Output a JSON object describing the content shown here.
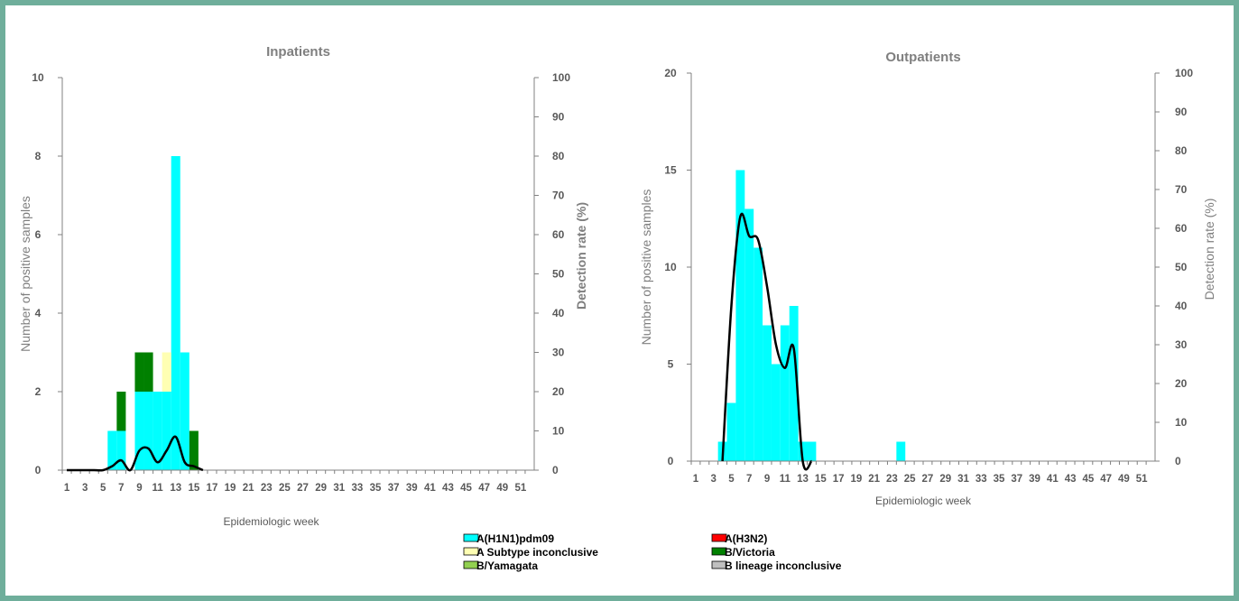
{
  "colors": {
    "A(H1N1)pdm09": "#00ffff",
    "A(H3N2)": "#ff0000",
    "A Subtype inconclusive": "#ffffb3",
    "B/Victoria": "#008000",
    "B/Yamagata": "#92d050",
    "B lineage inconclusive": "#bfbfbf",
    "detection_line": "#000000",
    "frame_border": "#6fae9b"
  },
  "legend": {
    "items": [
      {
        "label": "A(H1N1)pdm09",
        "color": "#00ffff"
      },
      {
        "label": "A(H3N2)",
        "color": "#ff0000"
      },
      {
        "label": "A Subtype inconclusive",
        "color": "#ffffb3"
      },
      {
        "label": "B/Victoria",
        "color": "#008000"
      },
      {
        "label": "B/Yamagata",
        "color": "#92d050"
      },
      {
        "label": "B lineage inconclusive",
        "color": "#bfbfbf"
      }
    ]
  },
  "chart_data": [
    {
      "type": "bar",
      "stacked": true,
      "title": "Inpatients",
      "xlabel": "Epidemiologic week",
      "ylabel": "Number of positive samples",
      "y2label": "Detection rate (%)",
      "ylim": [
        0,
        10
      ],
      "y2lim": [
        0,
        100
      ],
      "yticks": [
        0,
        2,
        4,
        6,
        8,
        10
      ],
      "y2ticks": [
        0,
        10,
        20,
        30,
        40,
        50,
        60,
        70,
        80,
        90,
        100
      ],
      "xticks": [
        "1",
        "3",
        "5",
        "7",
        "9",
        "11",
        "13",
        "15",
        "17",
        "19",
        "21",
        "23",
        "25",
        "27",
        "29",
        "31",
        "33",
        "35",
        "37",
        "39",
        "41",
        "43",
        "45",
        "47",
        "49",
        "51"
      ],
      "x": [
        1,
        2,
        3,
        4,
        5,
        6,
        7,
        8,
        9,
        10,
        11,
        12,
        13,
        14,
        15,
        16,
        17,
        18,
        19,
        20,
        21,
        22,
        23,
        24,
        25,
        26,
        27,
        28,
        29,
        30,
        31,
        32,
        33,
        34,
        35,
        36,
        37,
        38,
        39,
        40,
        41,
        42,
        43,
        44,
        45,
        46,
        47,
        48,
        49,
        50,
        51,
        52
      ],
      "series": [
        {
          "name": "A(H1N1)pdm09",
          "values": [
            0,
            0,
            0,
            0,
            0,
            1,
            1,
            0,
            2,
            2,
            2,
            2,
            8,
            3,
            0,
            0,
            0,
            0,
            0,
            0,
            0,
            0,
            0,
            0,
            0,
            0,
            0,
            0,
            0,
            0,
            0,
            0,
            0,
            0,
            0,
            0,
            0,
            0,
            0,
            0,
            0,
            0,
            0,
            0,
            0,
            0,
            0,
            0,
            0,
            0,
            0,
            0
          ]
        },
        {
          "name": "A(H3N2)",
          "values": [
            0,
            0,
            0,
            0,
            0,
            0,
            0,
            0,
            0,
            0,
            0,
            0,
            0,
            0,
            0,
            0,
            0,
            0,
            0,
            0,
            0,
            0,
            0,
            0,
            0,
            0,
            0,
            0,
            0,
            0,
            0,
            0,
            0,
            0,
            0,
            0,
            0,
            0,
            0,
            0,
            0,
            0,
            0,
            0,
            0,
            0,
            0,
            0,
            0,
            0,
            0,
            0
          ]
        },
        {
          "name": "A Subtype inconclusive",
          "values": [
            0,
            0,
            0,
            0,
            0,
            0,
            0,
            0,
            0,
            0,
            0,
            1,
            0,
            0,
            0,
            0,
            0,
            0,
            0,
            0,
            0,
            0,
            0,
            0,
            0,
            0,
            0,
            0,
            0,
            0,
            0,
            0,
            0,
            0,
            0,
            0,
            0,
            0,
            0,
            0,
            0,
            0,
            0,
            0,
            0,
            0,
            0,
            0,
            0,
            0,
            0,
            0
          ]
        },
        {
          "name": "B/Victoria",
          "values": [
            0,
            0,
            0,
            0,
            0,
            0,
            1,
            0,
            1,
            1,
            0,
            0,
            0,
            0,
            1,
            0,
            0,
            0,
            0,
            0,
            0,
            0,
            0,
            0,
            0,
            0,
            0,
            0,
            0,
            0,
            0,
            0,
            0,
            0,
            0,
            0,
            0,
            0,
            0,
            0,
            0,
            0,
            0,
            0,
            0,
            0,
            0,
            0,
            0,
            0,
            0,
            0
          ]
        },
        {
          "name": "B/Yamagata",
          "values": [
            0,
            0,
            0,
            0,
            0,
            0,
            0,
            0,
            0,
            0,
            0,
            0,
            0,
            0,
            0,
            0,
            0,
            0,
            0,
            0,
            0,
            0,
            0,
            0,
            0,
            0,
            0,
            0,
            0,
            0,
            0,
            0,
            0,
            0,
            0,
            0,
            0,
            0,
            0,
            0,
            0,
            0,
            0,
            0,
            0,
            0,
            0,
            0,
            0,
            0,
            0,
            0
          ]
        },
        {
          "name": "B lineage inconclusive",
          "values": [
            0,
            0,
            0,
            0,
            0,
            0,
            0,
            0,
            0,
            0,
            0,
            0,
            0,
            0,
            0,
            0,
            0,
            0,
            0,
            0,
            0,
            0,
            0,
            0,
            0,
            0,
            0,
            0,
            0,
            0,
            0,
            0,
            0,
            0,
            0,
            0,
            0,
            0,
            0,
            0,
            0,
            0,
            0,
            0,
            0,
            0,
            0,
            0,
            0,
            0,
            0,
            0
          ]
        }
      ],
      "detection_rate": {
        "x": [
          1,
          2,
          3,
          4,
          5,
          6,
          7,
          8,
          9,
          10,
          11,
          12,
          13,
          14,
          15,
          16
        ],
        "values": [
          0,
          0,
          0,
          0,
          0,
          1,
          2.5,
          0,
          5,
          5.5,
          2,
          5,
          8.5,
          2,
          1,
          0
        ]
      }
    },
    {
      "type": "bar",
      "stacked": true,
      "title": "Outpatients",
      "xlabel": "Epidemiologic week",
      "ylabel": "Number of positive samples",
      "y2label": "Detection rate (%)",
      "ylim": [
        0,
        20
      ],
      "y2lim": [
        0,
        100
      ],
      "yticks": [
        0,
        5,
        10,
        15,
        20
      ],
      "y2ticks": [
        0,
        10,
        20,
        30,
        40,
        50,
        60,
        70,
        80,
        90,
        100
      ],
      "xticks": [
        "1",
        "3",
        "5",
        "7",
        "9",
        "11",
        "13",
        "15",
        "17",
        "19",
        "21",
        "23",
        "25",
        "27",
        "29",
        "31",
        "33",
        "35",
        "37",
        "39",
        "41",
        "43",
        "45",
        "47",
        "49",
        "51"
      ],
      "x": [
        1,
        2,
        3,
        4,
        5,
        6,
        7,
        8,
        9,
        10,
        11,
        12,
        13,
        14,
        15,
        16,
        17,
        18,
        19,
        20,
        21,
        22,
        23,
        24,
        25,
        26,
        27,
        28,
        29,
        30,
        31,
        32,
        33,
        34,
        35,
        36,
        37,
        38,
        39,
        40,
        41,
        42,
        43,
        44,
        45,
        46,
        47,
        48,
        49,
        50,
        51,
        52
      ],
      "series": [
        {
          "name": "A(H1N1)pdm09",
          "values": [
            0,
            0,
            0,
            1,
            3,
            15,
            13,
            11,
            7,
            5,
            7,
            8,
            1,
            1,
            0,
            0,
            0,
            0,
            0,
            0,
            0,
            0,
            0,
            1,
            0,
            0,
            0,
            0,
            0,
            0,
            0,
            0,
            0,
            0,
            0,
            0,
            0,
            0,
            0,
            0,
            0,
            0,
            0,
            0,
            0,
            0,
            0,
            0,
            0,
            0,
            0,
            0
          ]
        },
        {
          "name": "A(H3N2)",
          "values": [
            0,
            0,
            0,
            0,
            0,
            0,
            0,
            0,
            0,
            0,
            0,
            0,
            0,
            0,
            0,
            0,
            0,
            0,
            0,
            0,
            0,
            0,
            0,
            0,
            0,
            0,
            0,
            0,
            0,
            0,
            0,
            0,
            0,
            0,
            0,
            0,
            0,
            0,
            0,
            0,
            0,
            0,
            0,
            0,
            0,
            0,
            0,
            0,
            0,
            0,
            0,
            0
          ]
        },
        {
          "name": "A Subtype inconclusive",
          "values": [
            0,
            0,
            0,
            0,
            0,
            0,
            0,
            0,
            0,
            0,
            0,
            0,
            0,
            0,
            0,
            0,
            0,
            0,
            0,
            0,
            0,
            0,
            0,
            0,
            0,
            0,
            0,
            0,
            0,
            0,
            0,
            0,
            0,
            0,
            0,
            0,
            0,
            0,
            0,
            0,
            0,
            0,
            0,
            0,
            0,
            0,
            0,
            0,
            0,
            0,
            0,
            0
          ]
        },
        {
          "name": "B/Victoria",
          "values": [
            0,
            0,
            0,
            0,
            0,
            0,
            0,
            0,
            0,
            0,
            0,
            0,
            0,
            0,
            0,
            0,
            0,
            0,
            0,
            0,
            0,
            0,
            0,
            0,
            0,
            0,
            0,
            0,
            0,
            0,
            0,
            0,
            0,
            0,
            0,
            0,
            0,
            0,
            0,
            0,
            0,
            0,
            0,
            0,
            0,
            0,
            0,
            0,
            0,
            0,
            0,
            0
          ]
        },
        {
          "name": "B/Yamagata",
          "values": [
            0,
            0,
            0,
            0,
            0,
            0,
            0,
            0,
            0,
            0,
            0,
            0,
            0,
            0,
            0,
            0,
            0,
            0,
            0,
            0,
            0,
            0,
            0,
            0,
            0,
            0,
            0,
            0,
            0,
            0,
            0,
            0,
            0,
            0,
            0,
            0,
            0,
            0,
            0,
            0,
            0,
            0,
            0,
            0,
            0,
            0,
            0,
            0,
            0,
            0,
            0,
            0
          ]
        },
        {
          "name": "B lineage inconclusive",
          "values": [
            0,
            0,
            0,
            0,
            0,
            0,
            0,
            0,
            0,
            0,
            0,
            0,
            0,
            0,
            0,
            0,
            0,
            0,
            0,
            0,
            0,
            0,
            0,
            0,
            0,
            0,
            0,
            0,
            0,
            0,
            0,
            0,
            0,
            0,
            0,
            0,
            0,
            0,
            0,
            0,
            0,
            0,
            0,
            0,
            0,
            0,
            0,
            0,
            0,
            0,
            0,
            0
          ]
        }
      ],
      "detection_rate": {
        "x": [
          4,
          5,
          6,
          7,
          8,
          9,
          10,
          11,
          12,
          13,
          14
        ],
        "values": [
          0,
          40,
          63,
          58,
          57,
          45,
          30,
          24,
          29,
          0,
          0
        ]
      }
    }
  ]
}
